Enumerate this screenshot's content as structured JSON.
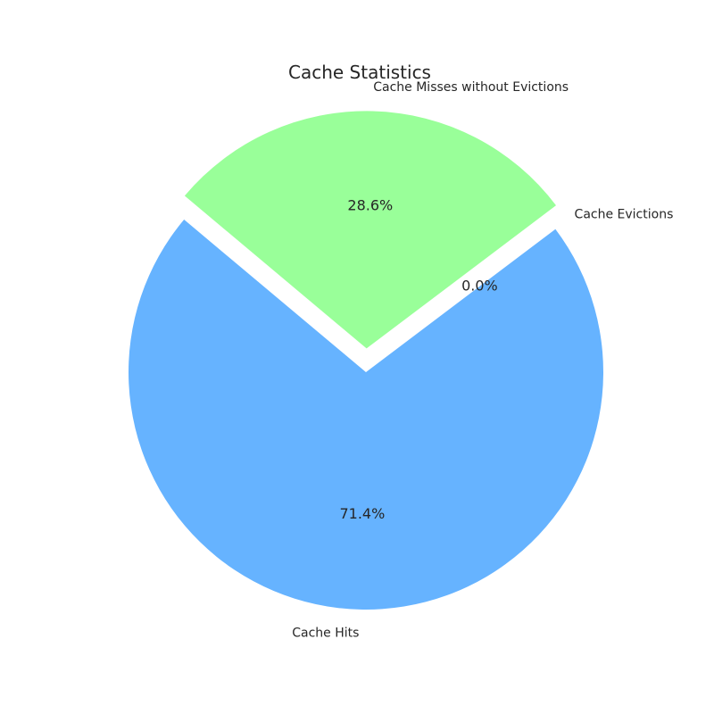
{
  "chart_data": {
    "type": "pie",
    "title": "Cache Statistics",
    "categories": [
      "Cache Hits",
      "Cache Evictions",
      "Cache Misses without Evictions"
    ],
    "values": [
      71.4,
      0.0,
      28.6
    ],
    "percent_labels": [
      "71.4%",
      "0.0%",
      "28.6%"
    ],
    "colors": [
      "#66b3ff",
      "#ff9999",
      "#99ff99"
    ],
    "exploded": [
      false,
      false,
      true
    ],
    "start_angle_deg": 140,
    "direction": "counterclockwise"
  }
}
